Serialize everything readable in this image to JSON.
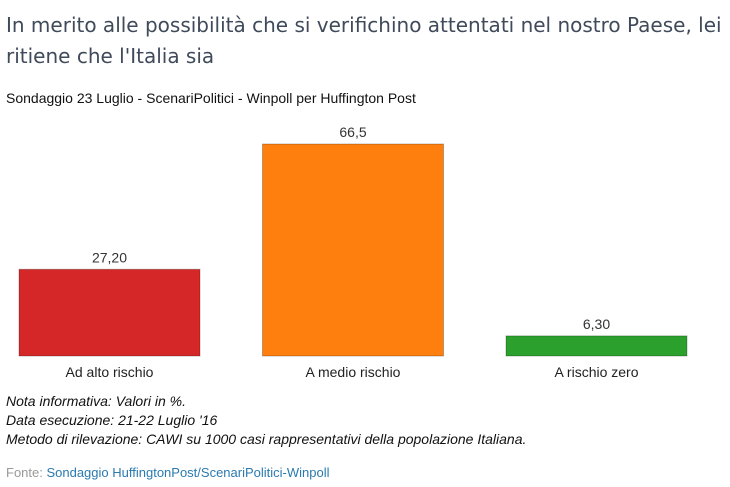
{
  "header": {
    "title": "In merito alle possibilità che si verifichino attentati nel nostro Paese, lei ritiene che l'Italia sia",
    "subtitle": "Sondaggio 23 Luglio - ScenariPolitici - Winpoll per Huffington Post"
  },
  "chart_data": {
    "type": "bar",
    "categories": [
      "Ad alto rischio",
      "A medio rischio",
      "A rischio zero"
    ],
    "values": [
      27.2,
      66.5,
      6.3
    ],
    "value_labels": [
      "27,20",
      "66,5",
      "6,30"
    ],
    "colors": [
      "#d62728",
      "#ff7f0e",
      "#2ca02c"
    ],
    "ylim": [
      0,
      66.5
    ],
    "grid": false,
    "legend": "none"
  },
  "notes": {
    "line1": "Nota informativa: Valori in %.",
    "line2": "Data esecuzione: 21-22 Luglio '16",
    "line3": "Metodo di rilevazione: CAWI su 1000 casi rappresentativi della popolazione Italiana."
  },
  "source": {
    "prefix": "Fonte: ",
    "link_text": "Sondaggio HuffingtonPost/ScenariPolitici-Winpoll"
  }
}
